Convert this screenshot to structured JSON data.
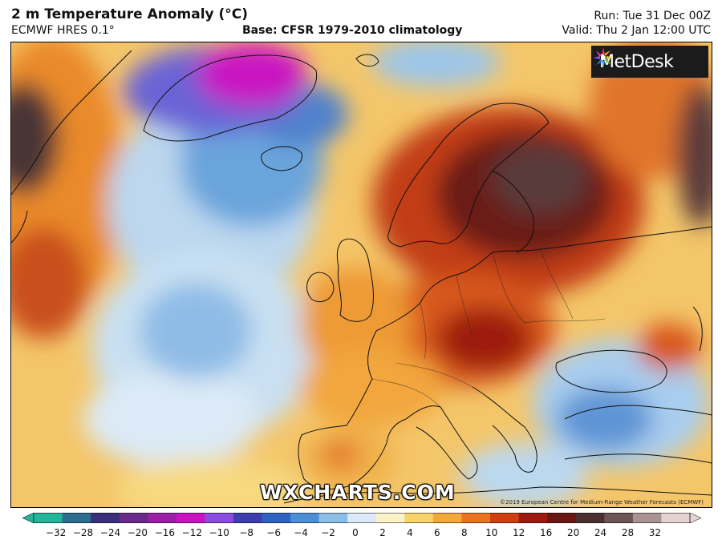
{
  "header": {
    "title": "2 m Temperature Anomaly (°C)",
    "model": "ECMWF HRES 0.1°",
    "base": "Base: CFSR 1979-2010 climatology",
    "run": "Run: Tue 31 Dec 00Z",
    "valid": "Valid: Thu 2 Jan 12:00 UTC"
  },
  "logo": {
    "text": "MetDesk",
    "icon": "metdesk-burst-icon"
  },
  "watermark": "WXCHARTS.COM",
  "copyright": "©2019 European Centre for Medium-Range Weather Forecasts (ECMWF)",
  "colorbar": {
    "ticks": [
      "−32",
      "−28",
      "−24",
      "−20",
      "−16",
      "−12",
      "−10",
      "−8",
      "−6",
      "−4",
      "−2",
      "0",
      "2",
      "4",
      "6",
      "8",
      "10",
      "12",
      "16",
      "20",
      "24",
      "28",
      "32"
    ],
    "colors": [
      "#22b59a",
      "#2b6e8f",
      "#3a2f7a",
      "#6a2a8c",
      "#9b1fa6",
      "#c913c2",
      "#8a4be0",
      "#3d3fb0",
      "#2e62c4",
      "#4c8fd6",
      "#8cbfe8",
      "#dbeaf6",
      "#fbf3c8",
      "#f8d36a",
      "#f3a83a",
      "#e9731f",
      "#cf3f12",
      "#9e1a10",
      "#6a1714",
      "#4c3030",
      "#6d5555",
      "#a99393",
      "#e5d2d2"
    ]
  }
}
